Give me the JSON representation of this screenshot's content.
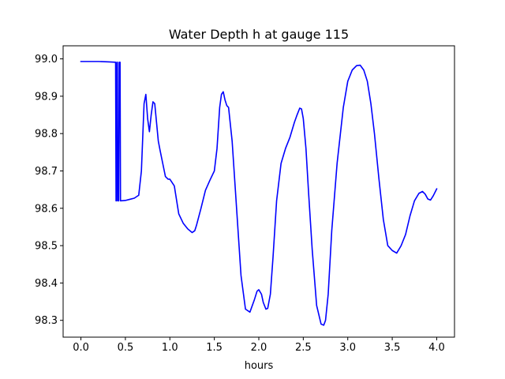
{
  "chart_data": {
    "type": "line",
    "title": "Water Depth h at gauge 115",
    "xlabel": "hours",
    "ylabel": "",
    "xlim": [
      -0.2,
      4.2
    ],
    "ylim": [
      98.255,
      99.035
    ],
    "x_ticks": [
      0.0,
      0.5,
      1.0,
      1.5,
      2.0,
      2.5,
      3.0,
      3.5,
      4.0
    ],
    "x_tick_labels": [
      "0.0",
      "0.5",
      "1.0",
      "1.5",
      "2.0",
      "2.5",
      "3.0",
      "3.5",
      "4.0"
    ],
    "y_ticks": [
      98.3,
      98.4,
      98.5,
      98.6,
      98.7,
      98.8,
      98.9,
      99.0
    ],
    "y_tick_labels": [
      "98.3",
      "98.4",
      "98.5",
      "98.6",
      "98.7",
      "98.8",
      "98.9",
      "99.0"
    ],
    "grid": false,
    "series": [
      {
        "color": "#0000ff",
        "x": [
          0.0,
          0.1,
          0.2,
          0.3,
          0.39,
          0.395,
          0.4,
          0.405,
          0.41,
          0.415,
          0.42,
          0.425,
          0.43,
          0.435,
          0.44,
          0.445,
          0.45,
          0.5,
          0.55,
          0.6,
          0.65,
          0.68,
          0.71,
          0.73,
          0.75,
          0.77,
          0.79,
          0.81,
          0.83,
          0.85,
          0.87,
          0.89,
          0.92,
          0.95,
          0.98,
          1.0,
          1.05,
          1.08,
          1.1,
          1.15,
          1.2,
          1.25,
          1.28,
          1.3,
          1.35,
          1.4,
          1.45,
          1.5,
          1.53,
          1.56,
          1.58,
          1.6,
          1.62,
          1.64,
          1.66,
          1.7,
          1.75,
          1.8,
          1.85,
          1.9,
          1.95,
          1.98,
          2.0,
          2.03,
          2.05,
          2.08,
          2.1,
          2.13,
          2.16,
          2.2,
          2.25,
          2.3,
          2.35,
          2.4,
          2.43,
          2.46,
          2.48,
          2.5,
          2.53,
          2.56,
          2.6,
          2.65,
          2.7,
          2.73,
          2.75,
          2.78,
          2.82,
          2.88,
          2.95,
          3.0,
          3.05,
          3.1,
          3.14,
          3.18,
          3.22,
          3.26,
          3.3,
          3.35,
          3.4,
          3.45,
          3.5,
          3.55,
          3.6,
          3.65,
          3.7,
          3.75,
          3.8,
          3.84,
          3.87,
          3.9,
          3.93,
          3.96,
          4.0
        ],
        "values": [
          98.993,
          98.993,
          98.993,
          98.992,
          98.991,
          98.62,
          98.62,
          98.991,
          98.991,
          98.62,
          98.62,
          98.62,
          98.991,
          98.991,
          98.991,
          98.62,
          98.62,
          98.621,
          98.624,
          98.627,
          98.635,
          98.7,
          98.88,
          98.905,
          98.84,
          98.805,
          98.85,
          98.885,
          98.88,
          98.83,
          98.78,
          98.755,
          98.72,
          98.685,
          98.678,
          98.678,
          98.66,
          98.615,
          98.585,
          98.56,
          98.545,
          98.535,
          98.54,
          98.555,
          98.6,
          98.648,
          98.675,
          98.7,
          98.76,
          98.87,
          98.905,
          98.912,
          98.89,
          98.875,
          98.87,
          98.78,
          98.6,
          98.42,
          98.33,
          98.322,
          98.355,
          98.378,
          98.382,
          98.37,
          98.348,
          98.33,
          98.332,
          98.37,
          98.47,
          98.62,
          98.72,
          98.76,
          98.79,
          98.83,
          98.85,
          98.868,
          98.866,
          98.84,
          98.76,
          98.64,
          98.49,
          98.34,
          98.29,
          98.287,
          98.3,
          98.37,
          98.54,
          98.72,
          98.87,
          98.94,
          98.97,
          98.982,
          98.983,
          98.97,
          98.94,
          98.88,
          98.8,
          98.68,
          98.57,
          98.5,
          98.487,
          98.48,
          98.5,
          98.53,
          98.58,
          98.62,
          98.64,
          98.645,
          98.638,
          98.625,
          98.622,
          98.633,
          98.652
        ]
      }
    ]
  }
}
